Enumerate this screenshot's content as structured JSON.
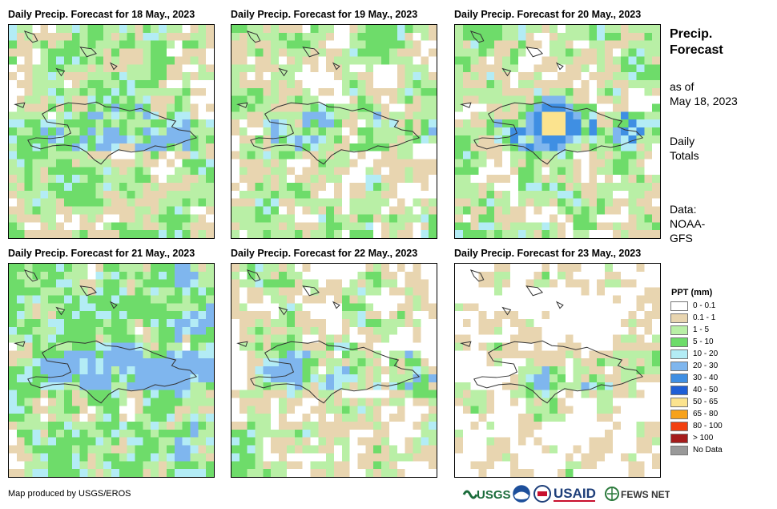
{
  "panels": [
    {
      "title": "Daily Precip. Forecast for 18 May., 2023",
      "seed": 11,
      "regime": "wet-light"
    },
    {
      "title": "Daily Precip. Forecast for 19 May., 2023",
      "seed": 23,
      "regime": "mixed"
    },
    {
      "title": "Daily Precip. Forecast for 20 May., 2023",
      "seed": 37,
      "regime": "storm"
    },
    {
      "title": "Daily Precip. Forecast for 21 May., 2023",
      "seed": 41,
      "regime": "wet"
    },
    {
      "title": "Daily Precip. Forecast for 22 May., 2023",
      "seed": 53,
      "regime": "mixed-light"
    },
    {
      "title": "Daily Precip. Forecast for 23 May., 2023",
      "seed": 67,
      "regime": "dry"
    }
  ],
  "side": {
    "title_line1": "Precip.",
    "title_line2": "Forecast",
    "asof_line1": "as of",
    "asof_line2": "May 18, 2023",
    "daily_line1": "Daily",
    "daily_line2": "Totals",
    "data_line1": "Data:",
    "data_line2": "NOAA-",
    "data_line3": "GFS"
  },
  "legend": {
    "title": "PPT (mm)",
    "items": [
      {
        "label": "0 - 0.1",
        "color": "#ffffff"
      },
      {
        "label": "0.1 - 1",
        "color": "#e8d5b0"
      },
      {
        "label": "1 - 5",
        "color": "#b9efa6"
      },
      {
        "label": "5 - 10",
        "color": "#6edc6a"
      },
      {
        "label": "10 - 20",
        "color": "#b3ecf5"
      },
      {
        "label": "20 - 30",
        "color": "#7fb6ee"
      },
      {
        "label": "30 - 40",
        "color": "#3f8fe3"
      },
      {
        "label": "40 - 50",
        "color": "#1f5fd6"
      },
      {
        "label": "50 - 65",
        "color": "#fbe38e"
      },
      {
        "label": "65 - 80",
        "color": "#f7a21b"
      },
      {
        "label": "80 - 100",
        "color": "#f2400f"
      },
      {
        "label": "> 100",
        "color": "#a51c1c"
      },
      {
        "label": "No Data",
        "color": "#999999"
      }
    ]
  },
  "credit": "Map produced by USGS/EROS",
  "logos": {
    "usgs": "USGS",
    "usaid": "USAID",
    "fews": "FEWS NET"
  }
}
